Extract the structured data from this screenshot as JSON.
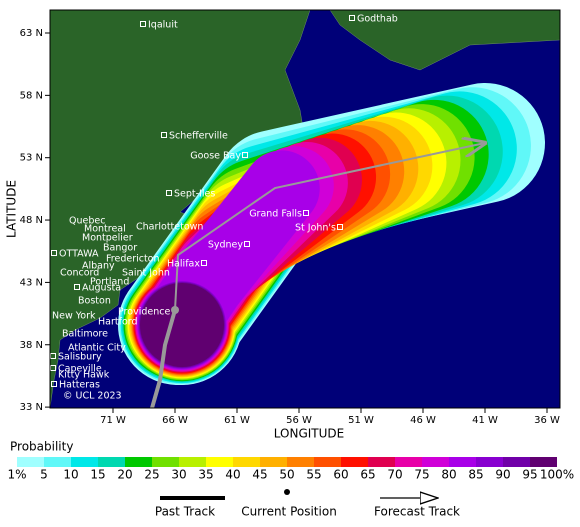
{
  "map": {
    "lat_label": "LATITUDE",
    "lon_label": "LONGITUDE",
    "lat_ticks": [
      {
        "value": 63,
        "label": "63 N"
      },
      {
        "value": 58,
        "label": "58 N"
      },
      {
        "value": 53,
        "label": "53 N"
      },
      {
        "value": 48,
        "label": "48 N"
      },
      {
        "value": 43,
        "label": "43 N"
      },
      {
        "value": 38,
        "label": "38 N"
      },
      {
        "value": 33,
        "label": "33 N"
      }
    ],
    "lon_ticks": [
      {
        "value": -71,
        "label": "71 W"
      },
      {
        "value": -66,
        "label": "66 W"
      },
      {
        "value": -61,
        "label": "61 W"
      },
      {
        "value": -56,
        "label": "56 W"
      },
      {
        "value": -51,
        "label": "51 W"
      },
      {
        "value": -46,
        "label": "46 W"
      },
      {
        "value": -41,
        "label": "41 W"
      },
      {
        "value": -36,
        "label": "36 W"
      }
    ],
    "cities": [
      "Iqaluit",
      "Godthab",
      "Schefferville",
      "Goose Bay",
      "Sept-Iles",
      "Quebec",
      "Montreal",
      "Charlottetown",
      "Montpelier",
      "Bangor",
      "Sydney",
      "Grand Falls",
      "St John's",
      "OTTAWA",
      "Fredericton",
      "Halifax",
      "Albany",
      "Saint John",
      "Concord",
      "Portland",
      "Augusta",
      "Boston",
      "Providence",
      "Hartford",
      "New York",
      "Baltimore",
      "Atlantic City",
      "Salisbury",
      "Capeville",
      "Kitty Hawk",
      "Hatteras"
    ],
    "copyright": "© UCL 2023"
  },
  "legend": {
    "title": "Probability",
    "labels": [
      "1%",
      "5",
      "10",
      "15",
      "20",
      "25",
      "30",
      "35",
      "40",
      "45",
      "50",
      "55",
      "60",
      "65",
      "70",
      "75",
      "80",
      "85",
      "90",
      "95",
      "100%"
    ],
    "colors": [
      "#a0ffff",
      "#60f8f8",
      "#00e8e8",
      "#00d8b0",
      "#00c800",
      "#70e000",
      "#b8f000",
      "#ffff00",
      "#ffd800",
      "#ffb000",
      "#ff8000",
      "#ff5000",
      "#ff1000",
      "#e00050",
      "#e800a8",
      "#d000d8",
      "#a800e8",
      "#8800d0",
      "#7000a8",
      "#600070"
    ],
    "past_track": "Past Track",
    "current_position": "Current Position",
    "forecast_track": "Forecast Track"
  }
}
